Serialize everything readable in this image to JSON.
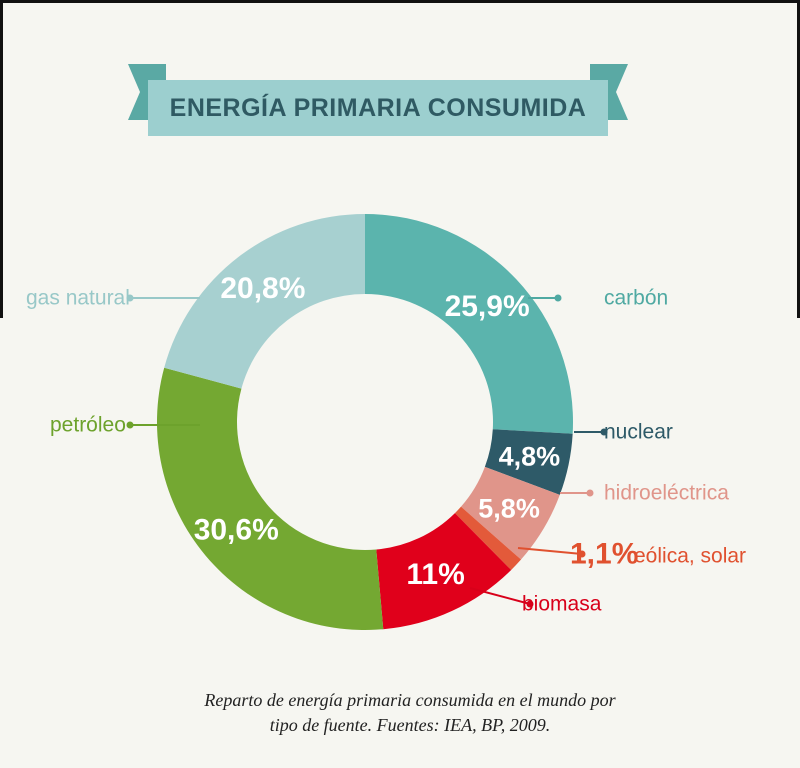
{
  "title": "ENERGÍA PRIMARIA CONSUMIDA",
  "colors": {
    "background": "#f6f6f1",
    "banner": "#9ccfcf",
    "banner_fold": "#4e9e9a",
    "title_text": "#2f5a63"
  },
  "chart_data": {
    "type": "pie",
    "style": "donut",
    "title": "ENERGÍA PRIMARIA CONSUMIDA",
    "slices": [
      {
        "label": "carbón",
        "value": 25.9,
        "value_label": "25,9%",
        "color": "#5bb4ad",
        "label_color": "#4fa9a2"
      },
      {
        "label": "nuclear",
        "value": 4.8,
        "value_label": "4,8%",
        "color": "#2e5a68",
        "label_color": "#2e5a68"
      },
      {
        "label": "hidroeléctrica",
        "value": 5.8,
        "value_label": "5,8%",
        "color": "#e0958a",
        "label_color": "#e0958a"
      },
      {
        "label": "eólica, solar",
        "value": 1.1,
        "value_label": "1,1%",
        "color": "#e35a3a",
        "label_color": "#e0512f"
      },
      {
        "label": "biomasa",
        "value": 11,
        "value_label": "11%",
        "color": "#e0001b",
        "label_color": "#d8001a"
      },
      {
        "label": "petróleo",
        "value": 30.6,
        "value_label": "30,6%",
        "color": "#74a832",
        "label_color": "#6da22c"
      },
      {
        "label": "gas natural",
        "value": 20.8,
        "value_label": "20,8%",
        "color": "#a7d0d0",
        "label_color": "#98c8c8"
      }
    ]
  },
  "caption": {
    "line1": "Reparto de energía primaria consumida en el mundo por",
    "line2": "tipo de fuente. Fuentes: IEA, BP, 2009."
  }
}
